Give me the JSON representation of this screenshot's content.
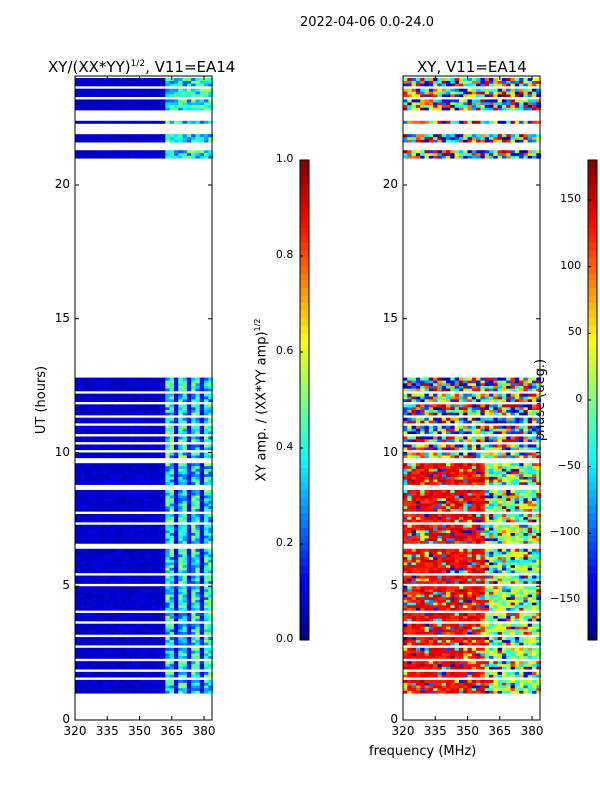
{
  "suptitle": "2022-04-06 0.0-24.0",
  "chart_data": [
    {
      "type": "heatmap",
      "title": "XY/(XX*YY)^1/2, V11=EA14",
      "title_main": "XY/(XX*YY)",
      "title_sup": "1/2",
      "title_tail": ", V11=EA14",
      "xlabel": "frequency (MHz)",
      "ylabel": "UT (hours)",
      "xlim": [
        320,
        383.7
      ],
      "ylim": [
        0,
        24
      ],
      "xticks": [
        "320",
        "335",
        "350",
        "365",
        "380"
      ],
      "yticks": [
        "0",
        "5",
        "10",
        "15",
        "20"
      ],
      "value": "amplitude",
      "background_level": 0.05,
      "active_band_mhz": [
        361,
        383
      ],
      "active_level": 0.45,
      "colorbar": {
        "label": "XY amp. / (XX*YY amp)^1/2",
        "label_main": "XY amp. / (XX*YY amp)",
        "label_sup": "1/2",
        "range": [
          0,
          1
        ],
        "ticks": [
          "0.0",
          "0.2",
          "0.4",
          "0.6",
          "0.8",
          "1.0"
        ]
      }
    },
    {
      "type": "heatmap",
      "title": "XY, V11=EA14",
      "xlabel": "frequency (MHz)",
      "ylabel": "",
      "xlim": [
        320,
        383.7
      ],
      "ylim": [
        0,
        24
      ],
      "xticks": [
        "320",
        "335",
        "350",
        "365",
        "380"
      ],
      "yticks": [
        "0",
        "5",
        "10",
        "15",
        "20"
      ],
      "value": "phase",
      "colorbar": {
        "label": "phase (deg.)",
        "range": [
          -180,
          180
        ],
        "ticks": [
          "-150",
          "-100",
          "-50",
          "0",
          "50",
          "100",
          "150"
        ]
      }
    }
  ],
  "data_segments_hours": [
    [
      1.0,
      1.5
    ],
    [
      1.6,
      1.8
    ],
    [
      1.9,
      2.2
    ],
    [
      2.3,
      2.7
    ],
    [
      2.8,
      3.1
    ],
    [
      3.2,
      3.6
    ],
    [
      3.7,
      4.0
    ],
    [
      4.1,
      5.0
    ],
    [
      5.1,
      5.4
    ],
    [
      5.5,
      6.4
    ],
    [
      6.6,
      7.3
    ],
    [
      7.4,
      7.7
    ],
    [
      7.8,
      8.6
    ],
    [
      8.8,
      9.6
    ],
    [
      9.8,
      10.0
    ],
    [
      10.1,
      10.3
    ],
    [
      10.4,
      10.6
    ],
    [
      10.7,
      11.0
    ],
    [
      11.1,
      11.3
    ],
    [
      11.4,
      11.8
    ],
    [
      11.9,
      12.2
    ],
    [
      12.3,
      12.8
    ],
    [
      21.0,
      21.3
    ],
    [
      21.6,
      21.9
    ],
    [
      22.3,
      22.4
    ],
    [
      22.8,
      23.2
    ],
    [
      23.3,
      23.6
    ],
    [
      23.7,
      24.0
    ]
  ]
}
